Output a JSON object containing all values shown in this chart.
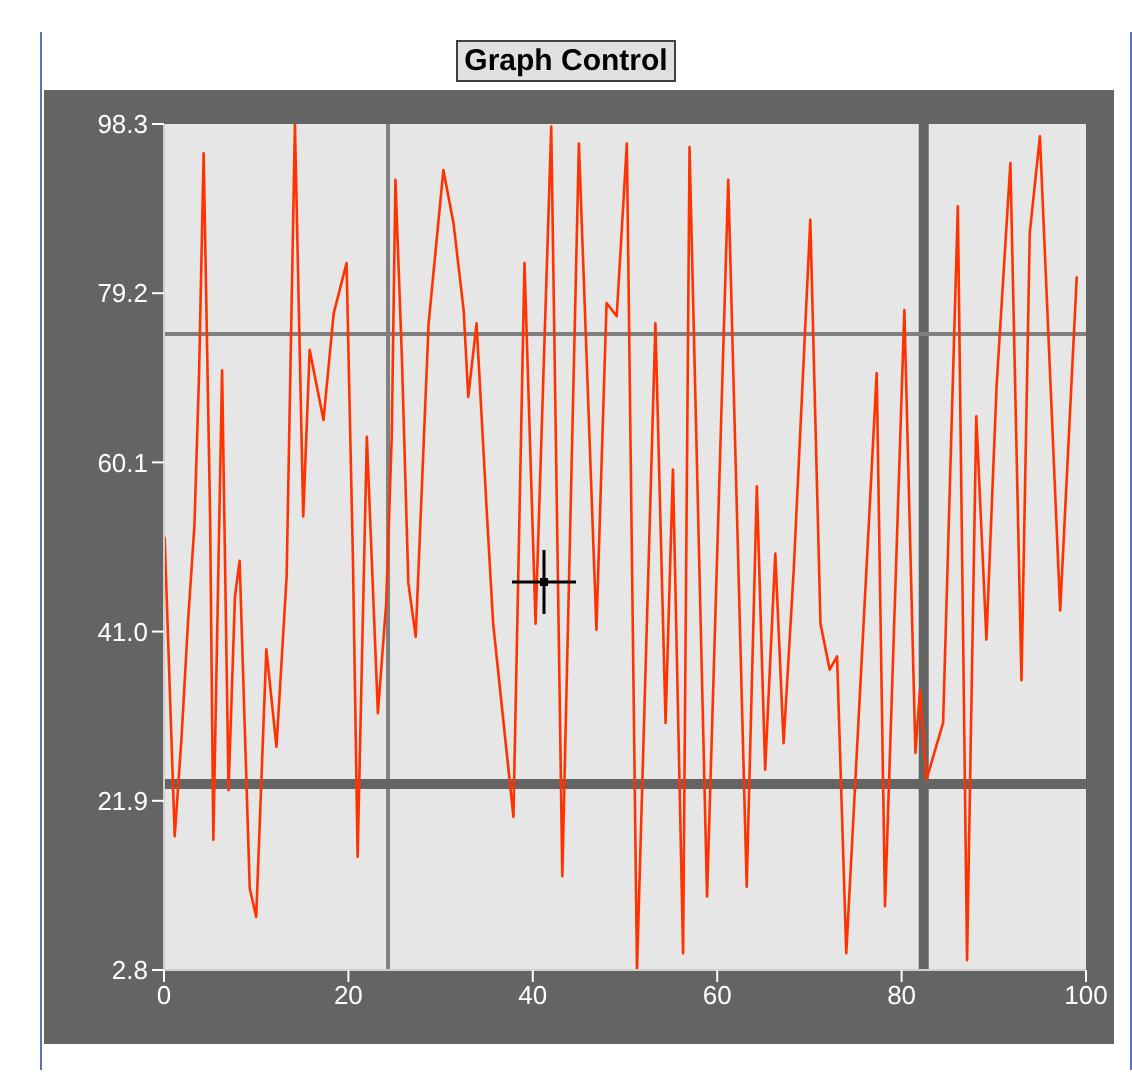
{
  "chart_data": {
    "type": "line",
    "title": "Graph Control",
    "x": [
      0.07,
      1.16,
      1.9,
      2.6,
      3.3,
      3.8,
      4.3,
      5.0,
      5.35,
      6.3,
      7.0,
      7.7,
      8.2,
      9.3,
      10,
      11.1,
      12.2,
      13.3,
      14.2,
      15.1,
      15.8,
      17.3,
      18.4,
      19.8,
      20.5,
      21.0,
      22,
      23.2,
      24.1,
      24.7,
      25.1,
      25.8,
      26.5,
      27.3,
      28.7,
      30.3,
      31.4,
      32.5,
      33.0,
      33.9,
      35.0,
      35.7,
      37.9,
      39.1,
      40.3,
      42.0,
      43.2,
      45,
      46.9,
      48,
      49.1,
      50.2,
      51.3,
      53.3,
      54.4,
      55.2,
      56.3,
      57.0,
      58.9,
      61.2,
      63.2,
      64.3,
      65.2,
      66.3,
      67.2,
      68.3,
      70.1,
      71.2,
      72.2,
      73,
      74.0,
      75.5,
      77.3,
      78.2,
      80.3,
      81.5,
      82,
      82.7,
      84.5,
      86.1,
      87.1,
      88.1,
      89.2,
      90.3,
      91.8,
      93.0,
      93.9,
      95,
      97.2,
      99
    ],
    "series": [
      {
        "color": "#ff3300",
        "values": [
          51.7,
          17.9,
          29,
          42,
          53,
          70,
          95,
          54,
          17.5,
          70.5,
          23.1,
          45,
          49,
          12,
          8.8,
          39,
          28,
          47.2,
          98.3,
          54,
          72.8,
          64.9,
          76.9,
          82.6,
          48.7,
          15.6,
          63,
          31.8,
          44.2,
          63,
          92,
          72,
          46.5,
          40.4,
          75.8,
          93.1,
          87.1,
          77.3,
          67.5,
          75.8,
          54.7,
          41.9,
          20.1,
          82.6,
          41.9,
          98,
          13.4,
          96.1,
          41.2,
          78.1,
          76.6,
          96.1,
          2.8,
          75.8,
          30.7,
          59.3,
          4.7,
          95.7,
          11.1,
          92,
          12.2,
          57.4,
          25.4,
          49.8,
          28.4,
          48,
          87.5,
          41.9,
          36.7,
          38.2,
          4.7,
          34.4,
          70.2,
          10,
          77.3,
          27.3,
          34.4,
          24.3,
          30.7,
          89,
          3.9,
          65.3,
          40.1,
          68.7,
          93.9,
          35.5,
          86,
          96.9,
          43.4,
          81.1
        ]
      }
    ],
    "xlim": [
      0,
      100
    ],
    "xticks": [
      0,
      20,
      40,
      60,
      80,
      100
    ],
    "ylim": [
      2.8,
      98.3
    ],
    "yticks": [
      2.8,
      21.9,
      {
        "value": 41,
        "label": "41.0"
      },
      60.1,
      79.2,
      98.3
    ],
    "ref_lines": [
      {
        "axis": "x",
        "value": 24.3,
        "color": "#808080"
      },
      {
        "axis": "x",
        "value": 82.4,
        "color": "#646464"
      },
      {
        "axis": "y",
        "value": 74.6,
        "color": "#808080"
      },
      {
        "axis": "y",
        "value": 23.8,
        "color": "#646464"
      }
    ],
    "grid": false,
    "legend": false,
    "marker": "none",
    "line_style": "solid"
  }
}
